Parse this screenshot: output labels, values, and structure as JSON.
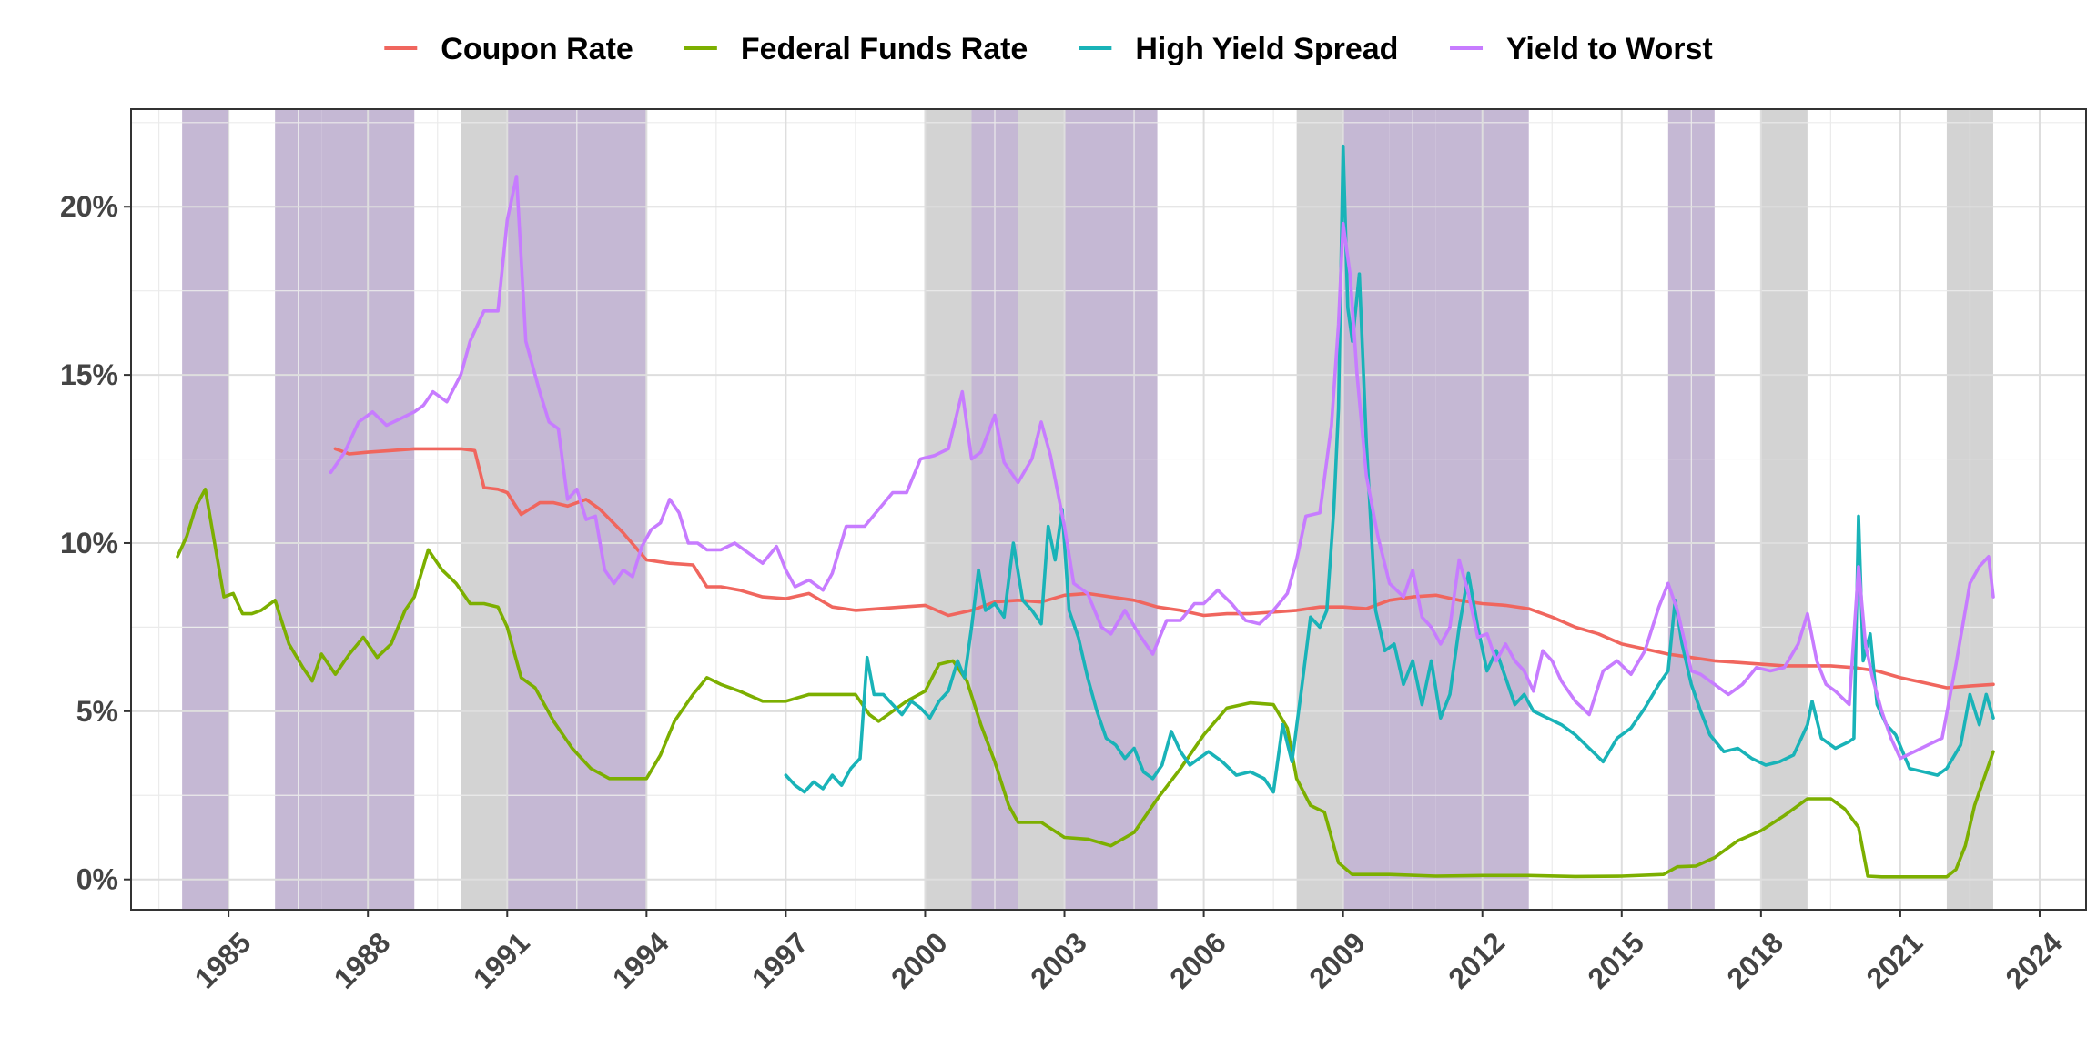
{
  "chart_data": {
    "type": "line",
    "title": "",
    "xlabel": "",
    "ylabel": "",
    "xlim": [
      1982.9,
      2025.0
    ],
    "ylim": [
      -0.9,
      22.9
    ],
    "x_ticks": [
      1985,
      1988,
      1991,
      1994,
      1997,
      2000,
      2003,
      2006,
      2009,
      2012,
      2015,
      2018,
      2021,
      2024
    ],
    "y_ticks": [
      0,
      5,
      10,
      15,
      20
    ],
    "y_tick_labels": [
      "0%",
      "5%",
      "10%",
      "15%",
      "20%"
    ],
    "grid": true,
    "legend_position": "top",
    "shaded_periods": [
      {
        "start": 1984.0,
        "end": 1985.0,
        "color": "#c5b8d4"
      },
      {
        "start": 1986.0,
        "end": 1987.0,
        "color": "#c5b8d4"
      },
      {
        "start": 1987.0,
        "end": 1988.0,
        "color": "#c5b8d4"
      },
      {
        "start": 1988.0,
        "end": 1989.0,
        "color": "#c5b8d4"
      },
      {
        "start": 1990.0,
        "end": 1991.0,
        "color": "#d3d3d3"
      },
      {
        "start": 1991.0,
        "end": 1994.0,
        "color": "#c5b8d4"
      },
      {
        "start": 2000.0,
        "end": 2001.0,
        "color": "#d3d3d3"
      },
      {
        "start": 2001.0,
        "end": 2002.0,
        "color": "#c5b8d4"
      },
      {
        "start": 2002.0,
        "end": 2003.0,
        "color": "#d3d3d3"
      },
      {
        "start": 2003.0,
        "end": 2005.0,
        "color": "#c5b8d4"
      },
      {
        "start": 2008.0,
        "end": 2009.0,
        "color": "#d3d3d3"
      },
      {
        "start": 2009.0,
        "end": 2010.0,
        "color": "#c5b8d4"
      },
      {
        "start": 2010.0,
        "end": 2011.0,
        "color": "#c5b8d4"
      },
      {
        "start": 2011.0,
        "end": 2012.0,
        "color": "#c5b8d4"
      },
      {
        "start": 2012.0,
        "end": 2013.0,
        "color": "#c5b8d4"
      },
      {
        "start": 2016.0,
        "end": 2017.0,
        "color": "#c5b8d4"
      },
      {
        "start": 2018.0,
        "end": 2019.0,
        "color": "#d3d3d3"
      },
      {
        "start": 2022.0,
        "end": 2023.0,
        "color": "#d3d3d3"
      }
    ],
    "series": [
      {
        "name": "Coupon Rate",
        "color": "#f0665e",
        "x": [
          1987.3,
          1987.6,
          1988.0,
          1988.5,
          1989.0,
          1989.5,
          1990.0,
          1990.3,
          1990.5,
          1990.8,
          1991.0,
          1991.3,
          1991.7,
          1992.0,
          1992.3,
          1992.7,
          1993.0,
          1993.5,
          1994.0,
          1994.5,
          1995.0,
          1995.3,
          1995.6,
          1996.0,
          1996.5,
          1997.0,
          1997.5,
          1998.0,
          1998.5,
          1999.0,
          1999.5,
          2000.0,
          2000.5,
          2001.0,
          2001.5,
          2002.0,
          2002.5,
          2003.0,
          2003.5,
          2004.0,
          2004.5,
          2005.0,
          2005.5,
          2006.0,
          2006.5,
          2007.0,
          2007.5,
          2008.0,
          2008.5,
          2009.0,
          2009.5,
          2010.0,
          2010.5,
          2011.0,
          2011.5,
          2012.0,
          2012.5,
          2013.0,
          2013.5,
          2014.0,
          2014.5,
          2015.0,
          2015.5,
          2016.0,
          2016.5,
          2017.0,
          2017.5,
          2018.0,
          2018.5,
          2019.0,
          2019.5,
          2020.0,
          2020.5,
          2021.0,
          2021.5,
          2022.0,
          2022.5,
          2023.0
        ],
        "y": [
          12.8,
          12.65,
          12.7,
          12.75,
          12.8,
          12.8,
          12.8,
          12.75,
          11.65,
          11.6,
          11.5,
          10.85,
          11.2,
          11.2,
          11.1,
          11.3,
          11.0,
          10.3,
          9.5,
          9.4,
          9.35,
          8.7,
          8.7,
          8.6,
          8.4,
          8.35,
          8.5,
          8.1,
          8.0,
          8.05,
          8.1,
          8.15,
          7.85,
          8.0,
          8.25,
          8.3,
          8.25,
          8.45,
          8.5,
          8.4,
          8.3,
          8.1,
          8.0,
          7.85,
          7.9,
          7.9,
          7.95,
          8.0,
          8.1,
          8.1,
          8.05,
          8.3,
          8.4,
          8.45,
          8.3,
          8.2,
          8.15,
          8.05,
          7.8,
          7.5,
          7.3,
          7.0,
          6.85,
          6.7,
          6.6,
          6.5,
          6.45,
          6.4,
          6.35,
          6.35,
          6.35,
          6.3,
          6.2,
          6.0,
          5.85,
          5.7,
          5.75,
          5.8
        ]
      },
      {
        "name": "Federal Funds Rate",
        "color": "#7caf00",
        "x": [
          1983.9,
          1984.1,
          1984.3,
          1984.5,
          1984.7,
          1984.9,
          1985.1,
          1985.3,
          1985.5,
          1985.7,
          1986.0,
          1986.3,
          1986.6,
          1986.8,
          1987.0,
          1987.3,
          1987.6,
          1987.9,
          1988.2,
          1988.5,
          1988.8,
          1989.0,
          1989.3,
          1989.6,
          1989.9,
          1990.2,
          1990.5,
          1990.8,
          1991.0,
          1991.3,
          1991.6,
          1992.0,
          1992.4,
          1992.8,
          1993.2,
          1993.6,
          1994.0,
          1994.3,
          1994.6,
          1995.0,
          1995.3,
          1995.6,
          1996.0,
          1996.5,
          1997.0,
          1997.5,
          1998.0,
          1998.5,
          1998.8,
          1999.0,
          1999.3,
          1999.6,
          2000.0,
          2000.3,
          2000.6,
          2000.9,
          2001.2,
          2001.5,
          2001.8,
          2002.0,
          2002.5,
          2003.0,
          2003.5,
          2004.0,
          2004.5,
          2005.0,
          2005.5,
          2006.0,
          2006.5,
          2007.0,
          2007.5,
          2007.8,
          2008.0,
          2008.3,
          2008.6,
          2008.9,
          2009.2,
          2009.5,
          2010.0,
          2011.0,
          2012.0,
          2013.0,
          2014.0,
          2015.0,
          2015.9,
          2016.2,
          2016.6,
          2017.0,
          2017.5,
          2018.0,
          2018.5,
          2019.0,
          2019.5,
          2019.8,
          2020.1,
          2020.3,
          2020.6,
          2021.0,
          2021.5,
          2022.0,
          2022.2,
          2022.4,
          2022.6,
          2022.8,
          2023.0
        ],
        "y": [
          9.6,
          10.2,
          11.1,
          11.6,
          10.0,
          8.4,
          8.5,
          7.9,
          7.9,
          8.0,
          8.3,
          7.0,
          6.3,
          5.9,
          6.7,
          6.1,
          6.7,
          7.2,
          6.6,
          7.0,
          8.0,
          8.4,
          9.8,
          9.2,
          8.8,
          8.2,
          8.2,
          8.1,
          7.5,
          6.0,
          5.7,
          4.7,
          3.9,
          3.3,
          3.0,
          3.0,
          3.0,
          3.7,
          4.7,
          5.5,
          6.0,
          5.8,
          5.6,
          5.3,
          5.3,
          5.5,
          5.5,
          5.5,
          4.9,
          4.7,
          5.0,
          5.3,
          5.6,
          6.4,
          6.5,
          5.9,
          4.6,
          3.5,
          2.2,
          1.7,
          1.7,
          1.25,
          1.2,
          1.0,
          1.4,
          2.4,
          3.3,
          4.3,
          5.1,
          5.25,
          5.2,
          4.5,
          3.0,
          2.2,
          2.0,
          0.5,
          0.15,
          0.15,
          0.15,
          0.1,
          0.12,
          0.12,
          0.09,
          0.1,
          0.15,
          0.38,
          0.4,
          0.65,
          1.15,
          1.45,
          1.9,
          2.4,
          2.4,
          2.1,
          1.55,
          0.1,
          0.08,
          0.08,
          0.08,
          0.08,
          0.3,
          1.0,
          2.2,
          3.0,
          3.8
        ]
      },
      {
        "name": "High Yield Spread",
        "color": "#19b3b8",
        "x": [
          1997.0,
          1997.2,
          1997.4,
          1997.6,
          1997.8,
          1998.0,
          1998.2,
          1998.4,
          1998.6,
          1998.75,
          1998.9,
          1999.1,
          1999.3,
          1999.5,
          1999.7,
          1999.9,
          2000.1,
          2000.3,
          2000.5,
          2000.7,
          2000.85,
          2001.0,
          2001.15,
          2001.3,
          2001.5,
          2001.7,
          2001.9,
          2002.1,
          2002.3,
          2002.5,
          2002.65,
          2002.8,
          2002.95,
          2003.1,
          2003.3,
          2003.5,
          2003.7,
          2003.9,
          2004.1,
          2004.3,
          2004.5,
          2004.7,
          2004.9,
          2005.1,
          2005.3,
          2005.5,
          2005.7,
          2005.9,
          2006.1,
          2006.4,
          2006.7,
          2007.0,
          2007.3,
          2007.5,
          2007.7,
          2007.9,
          2008.1,
          2008.3,
          2008.5,
          2008.65,
          2008.8,
          2008.9,
          2009.0,
          2009.1,
          2009.2,
          2009.35,
          2009.5,
          2009.7,
          2009.9,
          2010.1,
          2010.3,
          2010.5,
          2010.7,
          2010.9,
          2011.1,
          2011.3,
          2011.5,
          2011.7,
          2011.9,
          2012.1,
          2012.3,
          2012.5,
          2012.7,
          2012.9,
          2013.1,
          2013.4,
          2013.7,
          2014.0,
          2014.3,
          2014.6,
          2014.9,
          2015.2,
          2015.5,
          2015.8,
          2016.0,
          2016.15,
          2016.3,
          2016.5,
          2016.7,
          2016.9,
          2017.2,
          2017.5,
          2017.8,
          2018.1,
          2018.4,
          2018.7,
          2019.0,
          2019.1,
          2019.3,
          2019.6,
          2019.9,
          2020.0,
          2020.1,
          2020.2,
          2020.35,
          2020.5,
          2020.7,
          2020.9,
          2021.2,
          2021.5,
          2021.8,
          2022.0,
          2022.3,
          2022.5,
          2022.7,
          2022.85,
          2023.0
        ],
        "y": [
          3.1,
          2.8,
          2.6,
          2.9,
          2.7,
          3.1,
          2.8,
          3.3,
          3.6,
          6.6,
          5.5,
          5.5,
          5.2,
          4.9,
          5.3,
          5.1,
          4.8,
          5.3,
          5.6,
          6.5,
          6.0,
          7.5,
          9.2,
          8.0,
          8.2,
          7.8,
          10.0,
          8.3,
          8.0,
          7.6,
          10.5,
          9.5,
          11.0,
          8.0,
          7.2,
          6.0,
          5.0,
          4.2,
          4.0,
          3.6,
          3.9,
          3.2,
          3.0,
          3.4,
          4.4,
          3.8,
          3.4,
          3.6,
          3.8,
          3.5,
          3.1,
          3.2,
          3.0,
          2.6,
          4.6,
          3.5,
          5.6,
          7.8,
          7.5,
          8.0,
          11.0,
          14.0,
          21.8,
          17.0,
          16.0,
          18.0,
          13.0,
          8.0,
          6.8,
          7.0,
          5.8,
          6.5,
          5.2,
          6.5,
          4.8,
          5.5,
          7.5,
          9.1,
          7.5,
          6.2,
          6.8,
          6.0,
          5.2,
          5.5,
          5.0,
          4.8,
          4.6,
          4.3,
          3.9,
          3.5,
          4.2,
          4.5,
          5.1,
          5.8,
          6.2,
          8.3,
          7.0,
          5.8,
          5.0,
          4.3,
          3.8,
          3.9,
          3.6,
          3.4,
          3.5,
          3.7,
          4.6,
          5.3,
          4.2,
          3.9,
          4.1,
          4.2,
          10.8,
          6.5,
          7.3,
          5.2,
          4.6,
          4.3,
          3.3,
          3.2,
          3.1,
          3.3,
          4.0,
          5.5,
          4.6,
          5.5,
          4.8
        ]
      },
      {
        "name": "Yield to Worst",
        "color": "#c77cff",
        "x": [
          1987.2,
          1987.5,
          1987.8,
          1988.1,
          1988.4,
          1988.7,
          1989.0,
          1989.2,
          1989.4,
          1989.7,
          1990.0,
          1990.2,
          1990.5,
          1990.8,
          1991.0,
          1991.2,
          1991.4,
          1991.7,
          1991.9,
          1992.1,
          1992.3,
          1992.5,
          1992.7,
          1992.9,
          1993.1,
          1993.3,
          1993.5,
          1993.7,
          1993.9,
          1994.1,
          1994.3,
          1994.5,
          1994.7,
          1994.9,
          1995.1,
          1995.3,
          1995.6,
          1995.9,
          1996.2,
          1996.5,
          1996.8,
          1997.0,
          1997.2,
          1997.5,
          1997.8,
          1998.0,
          1998.3,
          1998.5,
          1998.7,
          1999.0,
          1999.3,
          1999.6,
          1999.9,
          2000.2,
          2000.5,
          2000.8,
          2001.0,
          2001.2,
          2001.5,
          2001.7,
          2002.0,
          2002.3,
          2002.5,
          2002.7,
          2003.0,
          2003.2,
          2003.5,
          2003.8,
          2004.0,
          2004.3,
          2004.6,
          2004.9,
          2005.2,
          2005.5,
          2005.8,
          2006.0,
          2006.3,
          2006.6,
          2006.9,
          2007.2,
          2007.5,
          2007.8,
          2008.0,
          2008.2,
          2008.5,
          2008.75,
          2008.9,
          2009.0,
          2009.15,
          2009.3,
          2009.5,
          2009.75,
          2010.0,
          2010.3,
          2010.5,
          2010.7,
          2010.9,
          2011.1,
          2011.3,
          2011.5,
          2011.7,
          2011.9,
          2012.1,
          2012.3,
          2012.5,
          2012.7,
          2012.9,
          2013.1,
          2013.3,
          2013.5,
          2013.7,
          2014.0,
          2014.3,
          2014.6,
          2014.9,
          2015.2,
          2015.5,
          2015.8,
          2016.0,
          2016.2,
          2016.5,
          2016.7,
          2017.0,
          2017.3,
          2017.6,
          2017.9,
          2018.2,
          2018.5,
          2018.8,
          2019.0,
          2019.2,
          2019.4,
          2019.6,
          2019.9,
          2020.1,
          2020.25,
          2020.4,
          2020.6,
          2020.8,
          2021.0,
          2021.3,
          2021.6,
          2021.9,
          2022.2,
          2022.5,
          2022.7,
          2022.9,
          2023.0
        ],
        "y": [
          12.1,
          12.7,
          13.6,
          13.9,
          13.5,
          13.7,
          13.9,
          14.1,
          14.5,
          14.2,
          15.0,
          16.0,
          16.9,
          16.9,
          19.6,
          20.9,
          16.0,
          14.5,
          13.6,
          13.4,
          11.3,
          11.6,
          10.7,
          10.8,
          9.2,
          8.8,
          9.2,
          9.0,
          9.9,
          10.4,
          10.6,
          11.3,
          10.9,
          10.0,
          10.0,
          9.8,
          9.8,
          10.0,
          9.7,
          9.4,
          9.9,
          9.2,
          8.7,
          8.9,
          8.6,
          9.1,
          10.5,
          10.5,
          10.5,
          11.0,
          11.5,
          11.5,
          12.5,
          12.6,
          12.8,
          14.5,
          12.5,
          12.7,
          13.8,
          12.4,
          11.8,
          12.5,
          13.6,
          12.6,
          10.5,
          8.8,
          8.5,
          7.5,
          7.3,
          8.0,
          7.3,
          6.7,
          7.7,
          7.7,
          8.2,
          8.2,
          8.6,
          8.2,
          7.7,
          7.6,
          8.0,
          8.5,
          9.5,
          10.8,
          10.9,
          13.5,
          16.5,
          19.5,
          18.0,
          15.0,
          12.0,
          10.2,
          8.8,
          8.4,
          9.2,
          7.8,
          7.5,
          7.0,
          7.5,
          9.5,
          8.5,
          7.2,
          7.3,
          6.5,
          7.0,
          6.5,
          6.2,
          5.6,
          6.8,
          6.5,
          5.9,
          5.3,
          4.9,
          6.2,
          6.5,
          6.1,
          6.8,
          8.1,
          8.8,
          8.0,
          6.2,
          6.1,
          5.8,
          5.5,
          5.8,
          6.3,
          6.2,
          6.3,
          7.0,
          7.9,
          6.5,
          5.8,
          5.6,
          5.2,
          9.3,
          7.0,
          6.0,
          5.0,
          4.2,
          3.6,
          3.8,
          4.0,
          4.2,
          6.4,
          8.8,
          9.3,
          9.6,
          8.4
        ]
      }
    ]
  }
}
